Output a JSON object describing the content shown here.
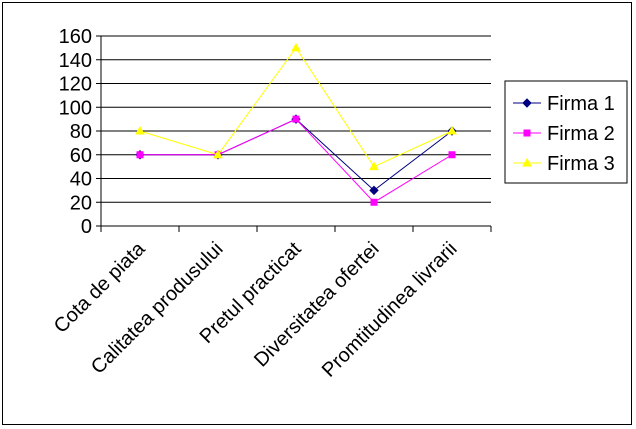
{
  "chart_data": {
    "type": "line",
    "categories": [
      "Cota de piata",
      "Calitatea produsului",
      "Pretul practicat",
      "Diversitatea ofertei",
      "Promtitudinea livrarii"
    ],
    "series": [
      {
        "name": "Firma 1",
        "values": [
          60,
          60,
          90,
          30,
          80
        ],
        "color": "#000080",
        "marker": "diamond"
      },
      {
        "name": "Firma 2",
        "values": [
          60,
          60,
          90,
          20,
          60
        ],
        "color": "#FF00FF",
        "marker": "square"
      },
      {
        "name": "Firma 3",
        "values": [
          80,
          60,
          150,
          50,
          80
        ],
        "color": "#FFFF00",
        "marker": "triangle"
      }
    ],
    "ylim": [
      0,
      160
    ],
    "yticks": [
      0,
      20,
      40,
      60,
      80,
      100,
      120,
      140,
      160
    ],
    "grid": true,
    "legend": "right",
    "title": "",
    "xlabel": "",
    "ylabel": ""
  }
}
